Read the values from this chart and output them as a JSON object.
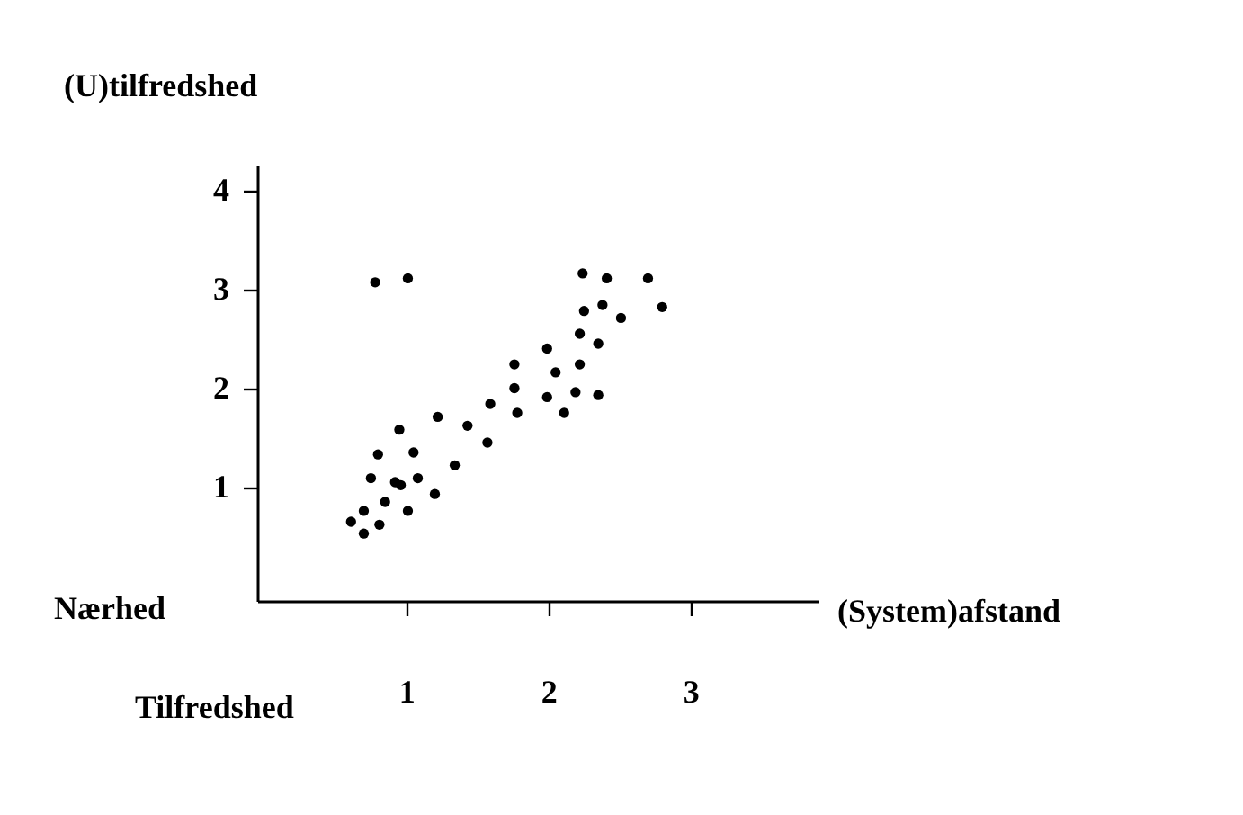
{
  "chart_data": {
    "type": "scatter",
    "xlabel": "(System)afstand",
    "ylabel": "(U)tilfredshed",
    "annotations": [
      "Nærhed",
      "Tilfredshed"
    ],
    "xlim": [
      -0.05,
      3.9
    ],
    "ylim": [
      -0.15,
      4.25
    ],
    "xticks": [
      1,
      2,
      3
    ],
    "yticks": [
      1,
      2,
      3,
      4
    ],
    "grid": false,
    "legend": false,
    "marker": "circle",
    "series": [
      {
        "color": "#000000",
        "x": [
          0.78,
          1.01,
          0.61,
          0.7,
          0.7,
          0.81,
          0.85,
          1.01,
          0.75,
          0.8,
          0.92,
          0.96,
          0.95,
          1.05,
          1.08,
          1.2,
          1.22,
          1.34,
          1.43,
          1.57,
          1.59,
          2.24,
          2.41,
          2.7,
          2.8,
          2.25,
          2.38,
          2.51,
          2.22,
          2.35,
          1.99,
          1.76,
          2.05,
          2.22,
          1.76,
          1.99,
          2.19,
          2.35,
          1.78,
          2.11
        ],
        "values": [
          3.07,
          3.11,
          0.65,
          0.76,
          0.53,
          0.62,
          0.85,
          0.76,
          1.09,
          1.33,
          1.05,
          1.02,
          1.58,
          1.35,
          1.09,
          0.93,
          1.71,
          1.22,
          1.62,
          1.45,
          1.84,
          3.16,
          3.11,
          3.11,
          2.82,
          2.78,
          2.84,
          2.71,
          2.55,
          2.45,
          2.4,
          2.24,
          2.16,
          2.24,
          2.0,
          1.91,
          1.96,
          1.93,
          1.75,
          1.75
        ]
      }
    ]
  }
}
